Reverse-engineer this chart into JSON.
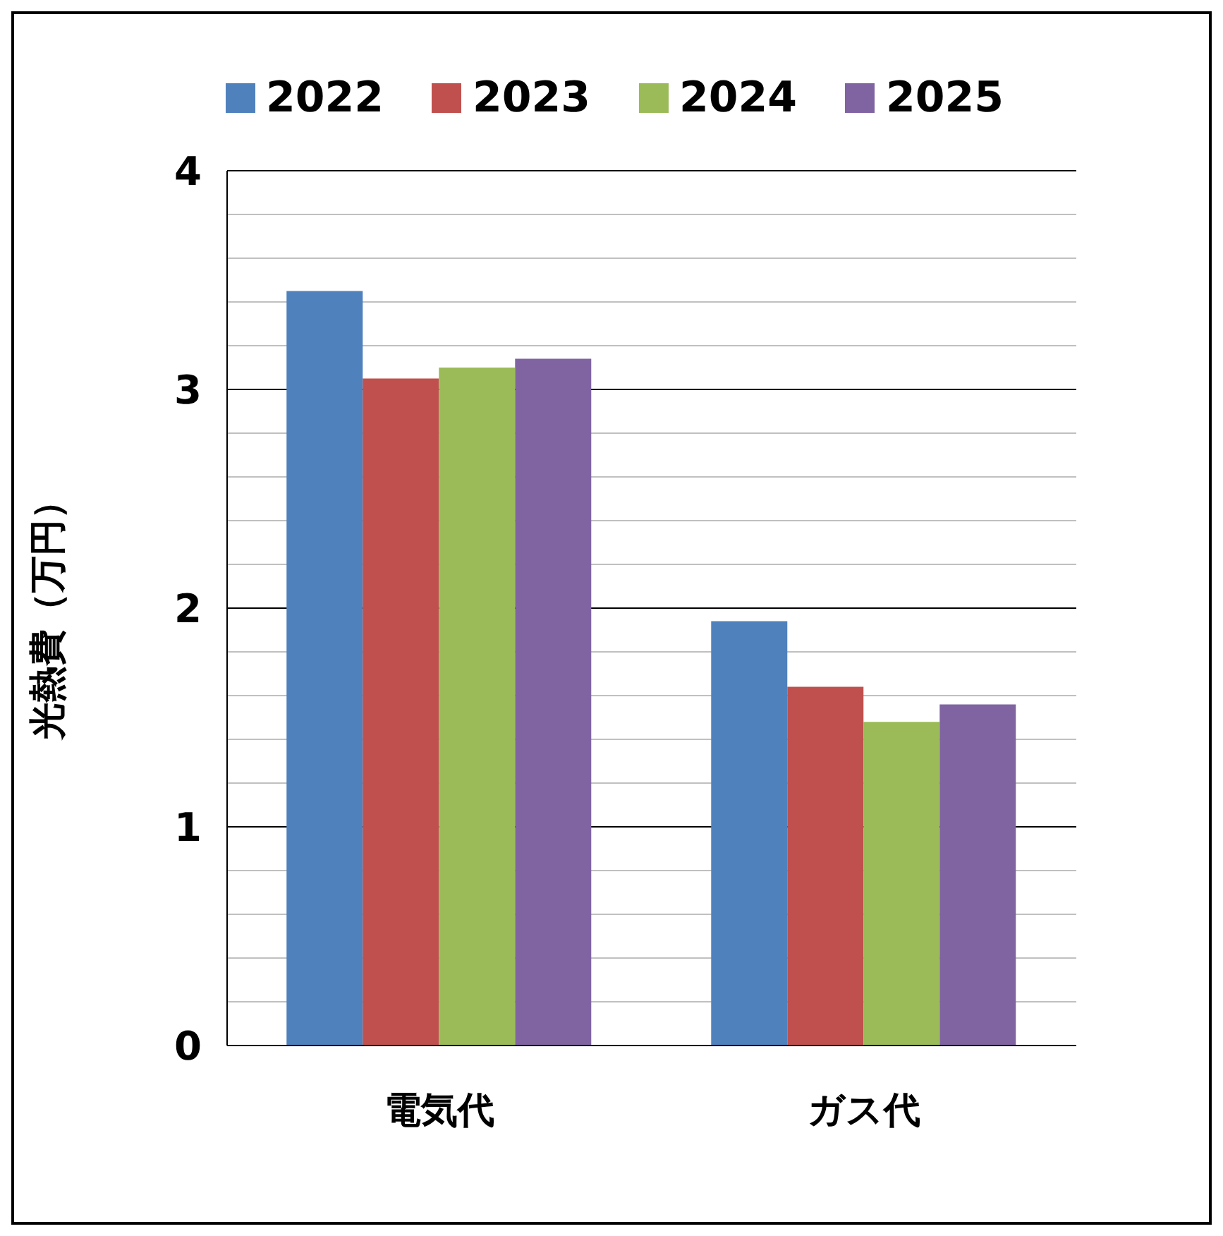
{
  "chart_data": {
    "type": "bar",
    "ylabel": "光熱費（万円）",
    "categories": [
      "電気代",
      "ガス代"
    ],
    "series": [
      {
        "name": "2022",
        "color": "#4f81bd",
        "values": [
          3.45,
          1.94
        ]
      },
      {
        "name": "2023",
        "color": "#c0504d",
        "values": [
          3.05,
          1.64
        ]
      },
      {
        "name": "2024",
        "color": "#9bbb59",
        "values": [
          3.1,
          1.48
        ]
      },
      {
        "name": "2025",
        "color": "#8064a2",
        "values": [
          3.14,
          1.56
        ]
      }
    ],
    "ylim": [
      0,
      4
    ],
    "yticks": [
      0,
      {
        "value": 0.2,
        "label": null
      },
      {
        "value": 0.4,
        "label": null
      },
      {
        "value": 0.6,
        "label": null
      },
      {
        "value": 0.8,
        "label": null
      },
      1,
      {
        "value": 1.2,
        "label": null
      },
      {
        "value": 1.4,
        "label": null
      },
      {
        "value": 1.6,
        "label": null
      },
      {
        "value": 1.8,
        "label": null
      },
      2,
      {
        "value": 2.2,
        "label": null
      },
      {
        "value": 2.4,
        "label": null
      },
      {
        "value": 2.6,
        "label": null
      },
      {
        "value": 2.8,
        "label": null
      },
      3,
      {
        "value": 3.2,
        "label": null
      },
      {
        "value": 3.4,
        "label": null
      },
      {
        "value": 3.6,
        "label": null
      },
      {
        "value": 3.8,
        "label": null
      },
      4
    ],
    "grid": "y",
    "legend": "top"
  }
}
